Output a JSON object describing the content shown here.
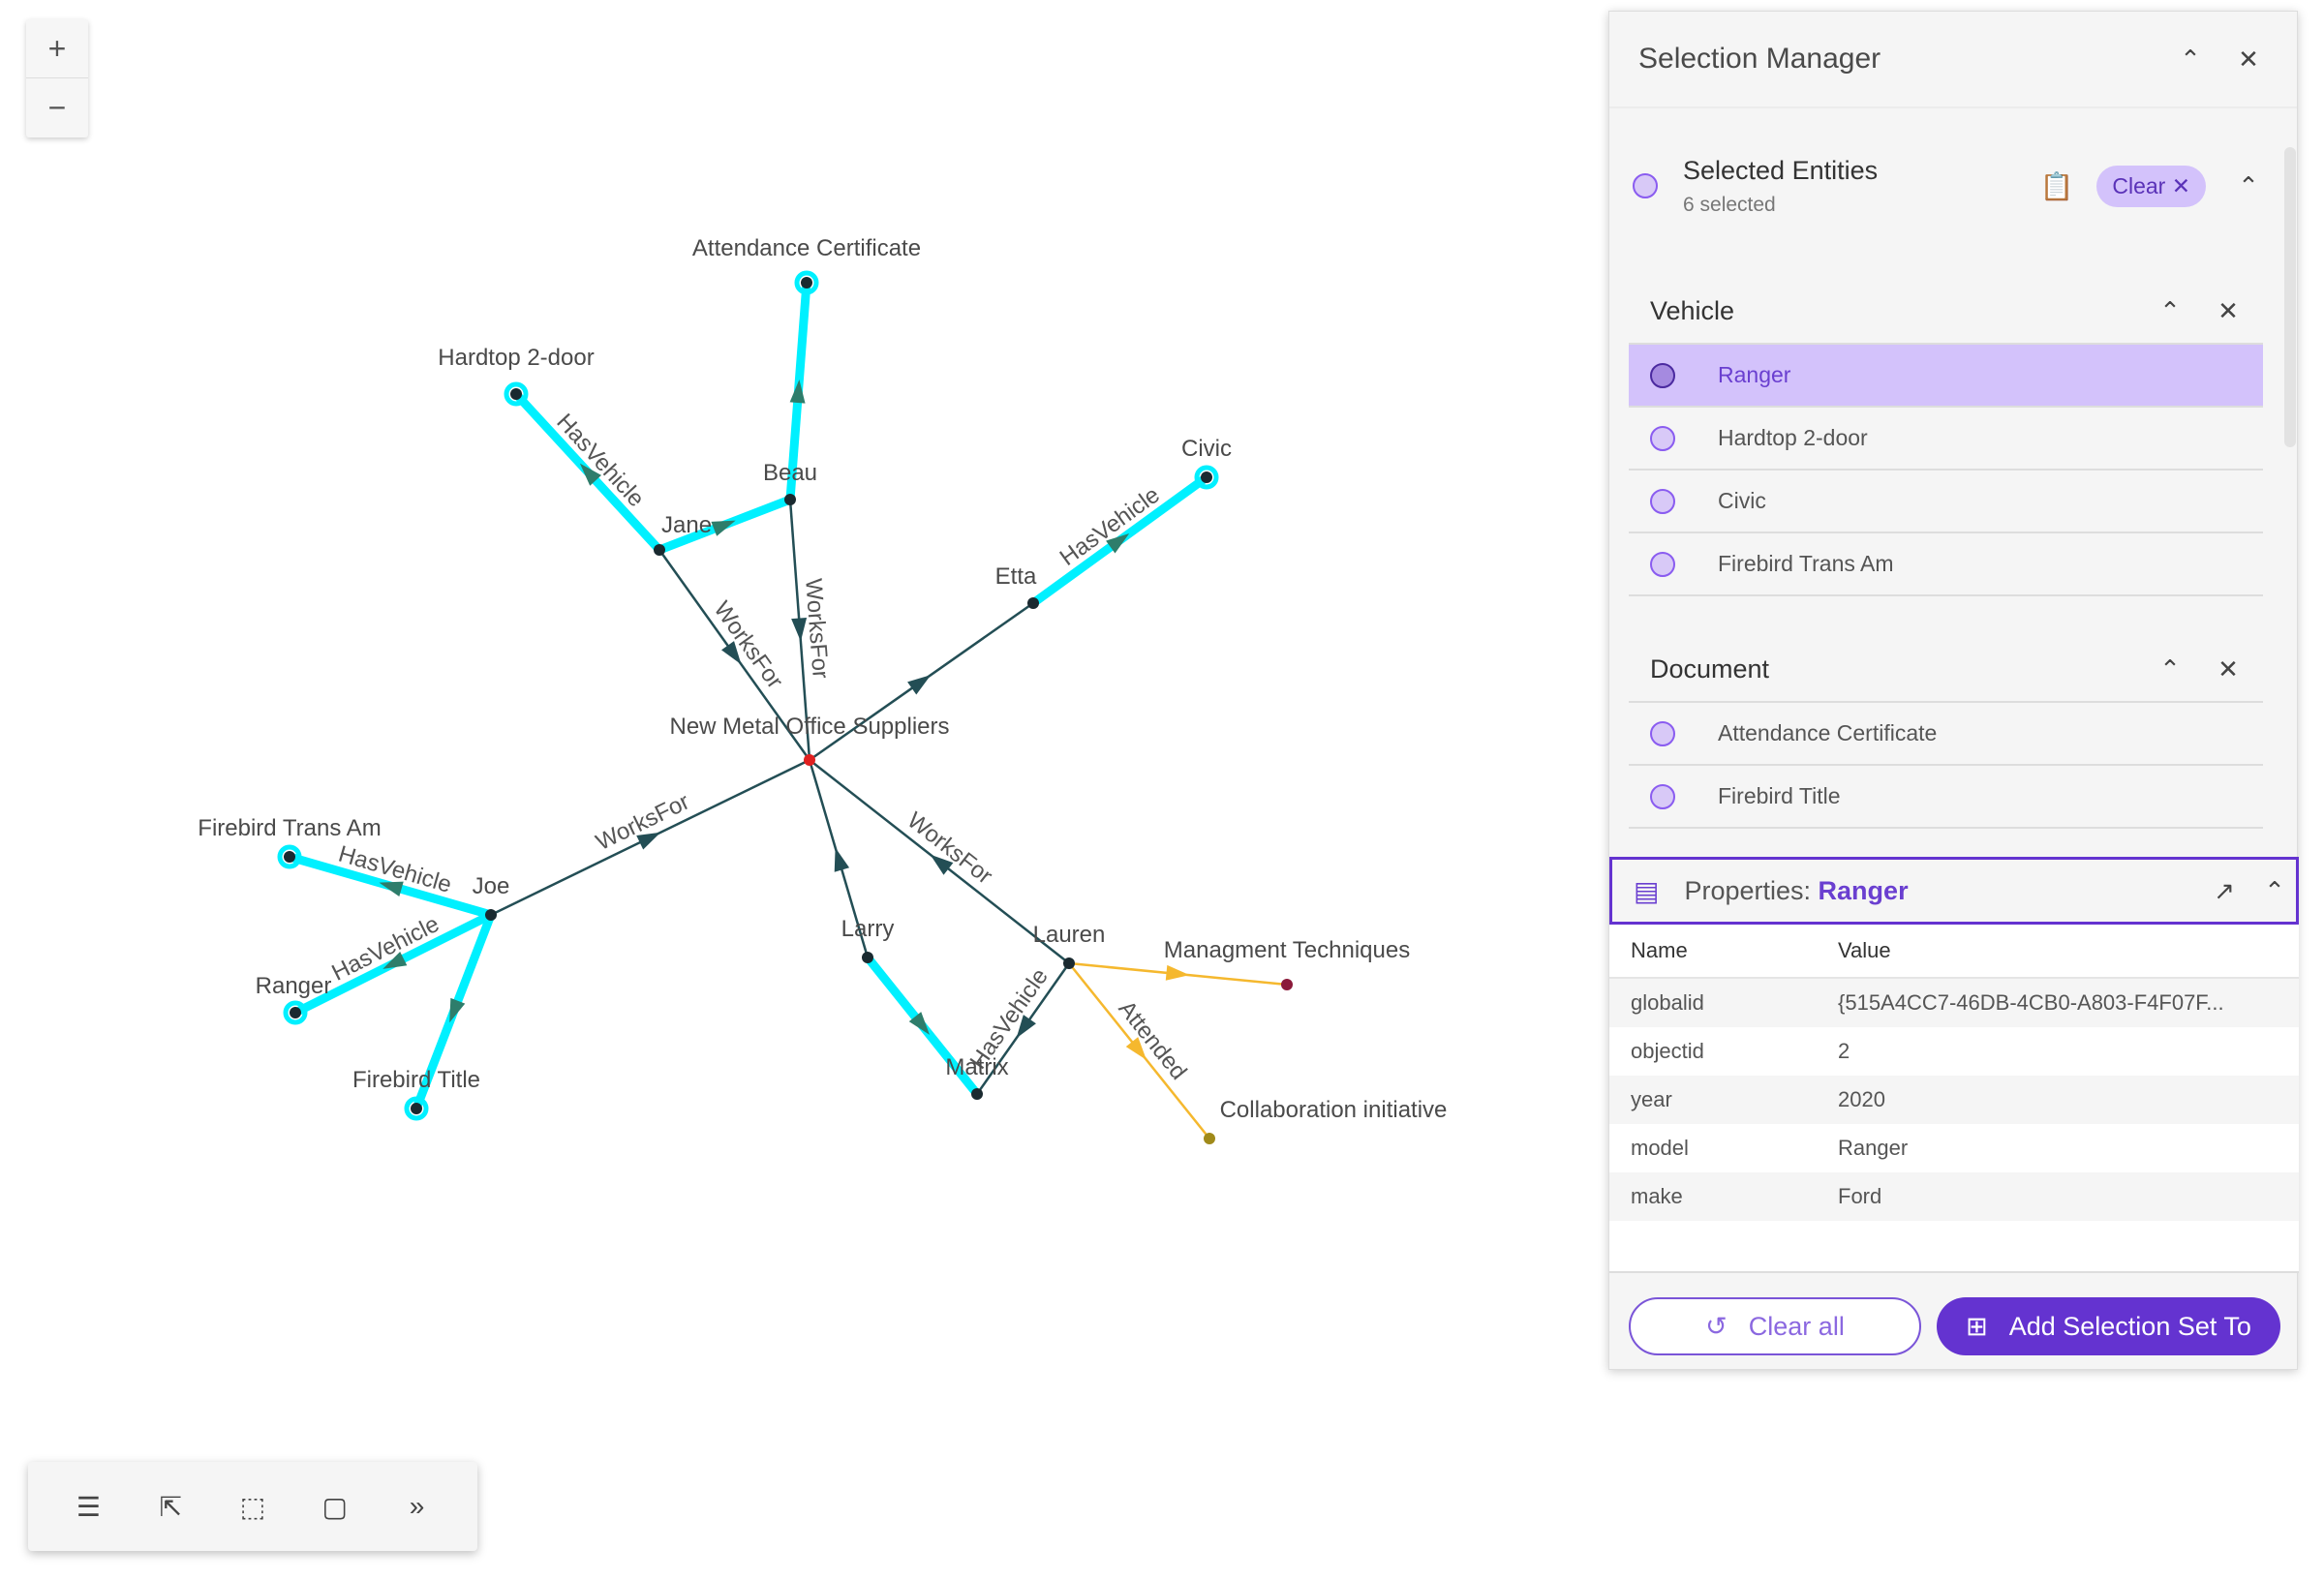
{
  "zoom": {
    "in": "+",
    "out": "−"
  },
  "graph": {
    "nodes": [
      "Attendance Certificate",
      "Hardtop 2-door",
      "Beau",
      "Jane",
      "Civic",
      "Etta",
      "New Metal Office Suppliers",
      "Firebird Trans Am",
      "Joe",
      "Ranger",
      "Firebird Title",
      "Larry",
      "Lauren",
      "Matrix",
      "Managment Techniques",
      "Collaboration initiative"
    ],
    "edges": [
      {
        "from": "Beau",
        "to": "Attendance Certificate",
        "label": "",
        "selected": true
      },
      {
        "from": "Jane",
        "to": "Hardtop 2-door",
        "label": "HasVehicle",
        "selected": true
      },
      {
        "from": "Jane",
        "to": "Beau",
        "label": "",
        "selected": true
      },
      {
        "from": "Jane",
        "to": "New Metal Office Suppliers",
        "label": "WorksFor",
        "selected": false
      },
      {
        "from": "Beau",
        "to": "New Metal Office Suppliers",
        "label": "WorksFor",
        "selected": false
      },
      {
        "from": "Etta",
        "to": "Civic",
        "label": "HasVehicle",
        "selected": true
      },
      {
        "from": "New Metal Office Suppliers",
        "to": "Etta",
        "label": "",
        "selected": false
      },
      {
        "from": "Joe",
        "to": "New Metal Office Suppliers",
        "label": "WorksFor",
        "selected": false
      },
      {
        "from": "Joe",
        "to": "Firebird Trans Am",
        "label": "HasVehicle",
        "selected": true
      },
      {
        "from": "Joe",
        "to": "Ranger",
        "label": "HasVehicle",
        "selected": true
      },
      {
        "from": "Joe",
        "to": "Firebird Title",
        "label": "",
        "selected": true
      },
      {
        "from": "Larry",
        "to": "New Metal Office Suppliers",
        "label": "",
        "selected": false
      },
      {
        "from": "Larry",
        "to": "Matrix",
        "label": "",
        "selected": true
      },
      {
        "from": "Lauren",
        "to": "New Metal Office Suppliers",
        "label": "WorksFor",
        "selected": false
      },
      {
        "from": "Lauren",
        "to": "Matrix",
        "label": "HasVehicle",
        "selected": false
      },
      {
        "from": "Lauren",
        "to": "Managment Techniques",
        "label": "",
        "selected": false,
        "type": "attended"
      },
      {
        "from": "Lauren",
        "to": "Collaboration initiative",
        "label": "Attended",
        "selected": false,
        "type": "attended"
      }
    ],
    "colors": {
      "edge": "#234e55",
      "selected": "#00f0ff",
      "attended": "#f5b82e",
      "center": "#e02020",
      "event1": "#8b1a3a",
      "event2": "#a08a1a"
    }
  },
  "toolbar": {
    "icons": [
      "list-icon",
      "select-cursor-icon",
      "box-select-icon",
      "layout-icon",
      "chevrons-right-icon"
    ],
    "more": "»"
  },
  "panel": {
    "title": "Selection Manager",
    "selected": {
      "title": "Selected Entities",
      "count": "6 selected",
      "clear": "Clear"
    },
    "groups": [
      {
        "title": "Vehicle",
        "items": [
          "Ranger",
          "Hardtop 2-door",
          "Civic",
          "Firebird Trans Am"
        ]
      },
      {
        "title": "Document",
        "items": [
          "Attendance Certificate",
          "Firebird Title"
        ]
      }
    ],
    "properties": {
      "label": "Properties:",
      "entity": "Ranger",
      "col_name": "Name",
      "col_value": "Value",
      "rows": [
        [
          "globalid",
          "{515A4CC7-46DB-4CB0-A803-F4F07F..."
        ],
        [
          "objectid",
          "2"
        ],
        [
          "year",
          "2020"
        ],
        [
          "model",
          "Ranger"
        ],
        [
          "make",
          "Ford"
        ]
      ]
    },
    "clear_all": "Clear all",
    "add_set": "Add Selection Set To",
    "accent": "#6433d0"
  }
}
